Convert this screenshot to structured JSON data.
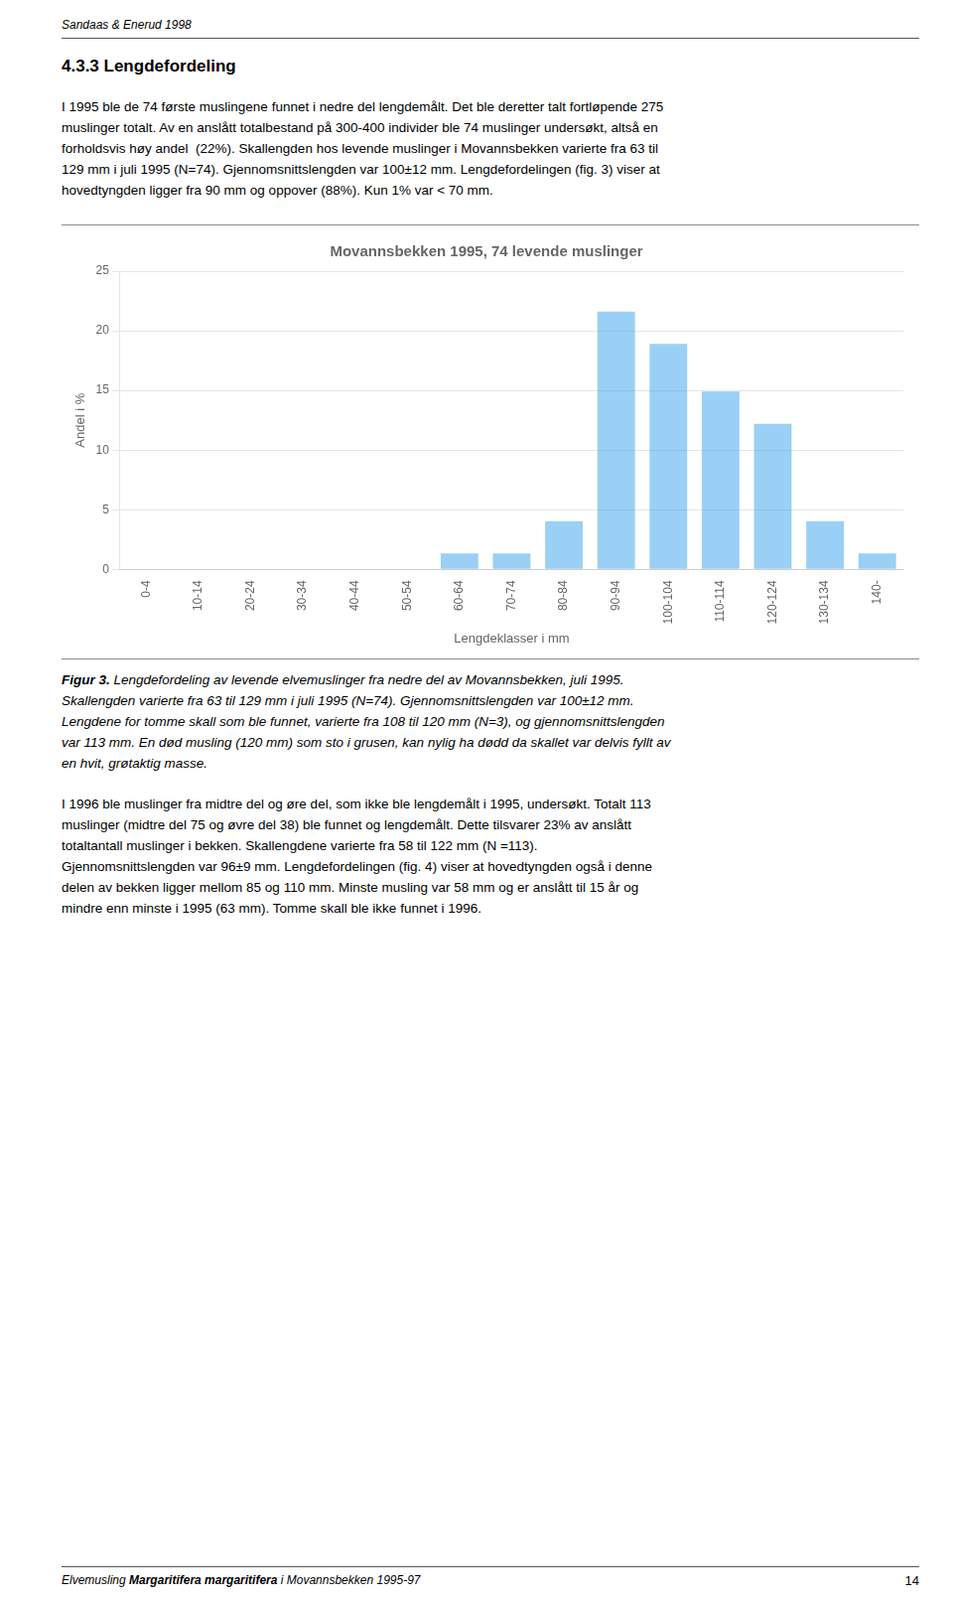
{
  "header": "Sandaas & Enerud 1998",
  "section_title": "4.3.3  Lengdefordeling",
  "paragraphs": [
    [
      "I 1995 ble de 74 første muslingene funnet i nedre del lengdemålt. Det ble deretter talt fortløpende 275",
      "muslinger totalt. Av en anslått totalbestand på 300-400 individer ble 74 muslinger undersøkt, altså en",
      "forholdsvis høy andel  (22%). Skallengden hos levende muslinger i Movannsbekken varierte fra 63 til",
      "129 mm i juli 1995 (N=74). Gjennomsnittslengden var 100±12 mm. Lengdefordelingen (fig. 3) viser at",
      "hovedtyngden ligger fra 90 mm og oppover (88%). Kun 1% var < 70 mm."
    ],
    [
      "I 1996 ble muslinger fra midtre del og øre del, som ikke ble lengdemålt i 1995, undersøkt. Totalt 113",
      "muslinger (midtre del 75 og øvre del 38) ble funnet og lengdemålt. Dette tilsvarer 23% av anslått",
      "totaltantall muslinger i bekken. Skallengdene varierte fra 58 til 122 mm (N =113).",
      "Gjennomsnittslengden var 96±9 mm. Lengdefordelingen (fig. 4) viser at hovedtyngden også i denne",
      "delen av bekken ligger mellom 85 og 110 mm. Minste musling var 58 mm og er anslått til 15 år og",
      "mindre enn minste i 1995 (63 mm). Tomme skall ble ikke funnet i 1996."
    ]
  ],
  "caption_lead": "Figur 3.",
  "caption": [
    " Lengdefordeling av levende elvemuslinger fra nedre del av Movannsbekken, juli 1995.",
    "Skallengden varierte fra 63 til 129 mm i juli 1995 (N=74). Gjennomsnittslengden var 100±12 mm.",
    "Lengdene for tomme skall som ble funnet, varierte fra 108 til 120 mm (N=3), og gjennomsnittslengden",
    "var 113 mm. En død musling (120 mm) som sto i grusen, kan nylig ha dødd da skallet var delvis fyllt av",
    "en hvit, grøtaktig masse."
  ],
  "footer": [
    "Elvemusling ",
    "Margaritifera margaritifera",
    " i Movannsbekken 1995-97"
  ],
  "page_number": "14",
  "chart_data": {
    "type": "bar",
    "title": "Movannsbekken 1995, 74 levende muslinger",
    "xlabel": "Lengdeklasser i mm",
    "ylabel": "Andel i %",
    "categories": [
      "0-4",
      "10-14",
      "20-24",
      "30-34",
      "40-44",
      "50-54",
      "60-64",
      "70-74",
      "80-84",
      "90-94",
      "100-104",
      "110-114",
      "120-124",
      "130-134",
      "140-"
    ],
    "values": [
      0,
      0,
      0,
      0,
      0,
      0,
      1.35,
      1.35,
      4.05,
      21.6,
      18.9,
      14.9,
      12.2,
      4.05,
      1.35
    ],
    "ylim": [
      0,
      25
    ],
    "yticks": [
      0,
      5,
      10,
      15,
      20,
      25
    ],
    "grid": true
  }
}
